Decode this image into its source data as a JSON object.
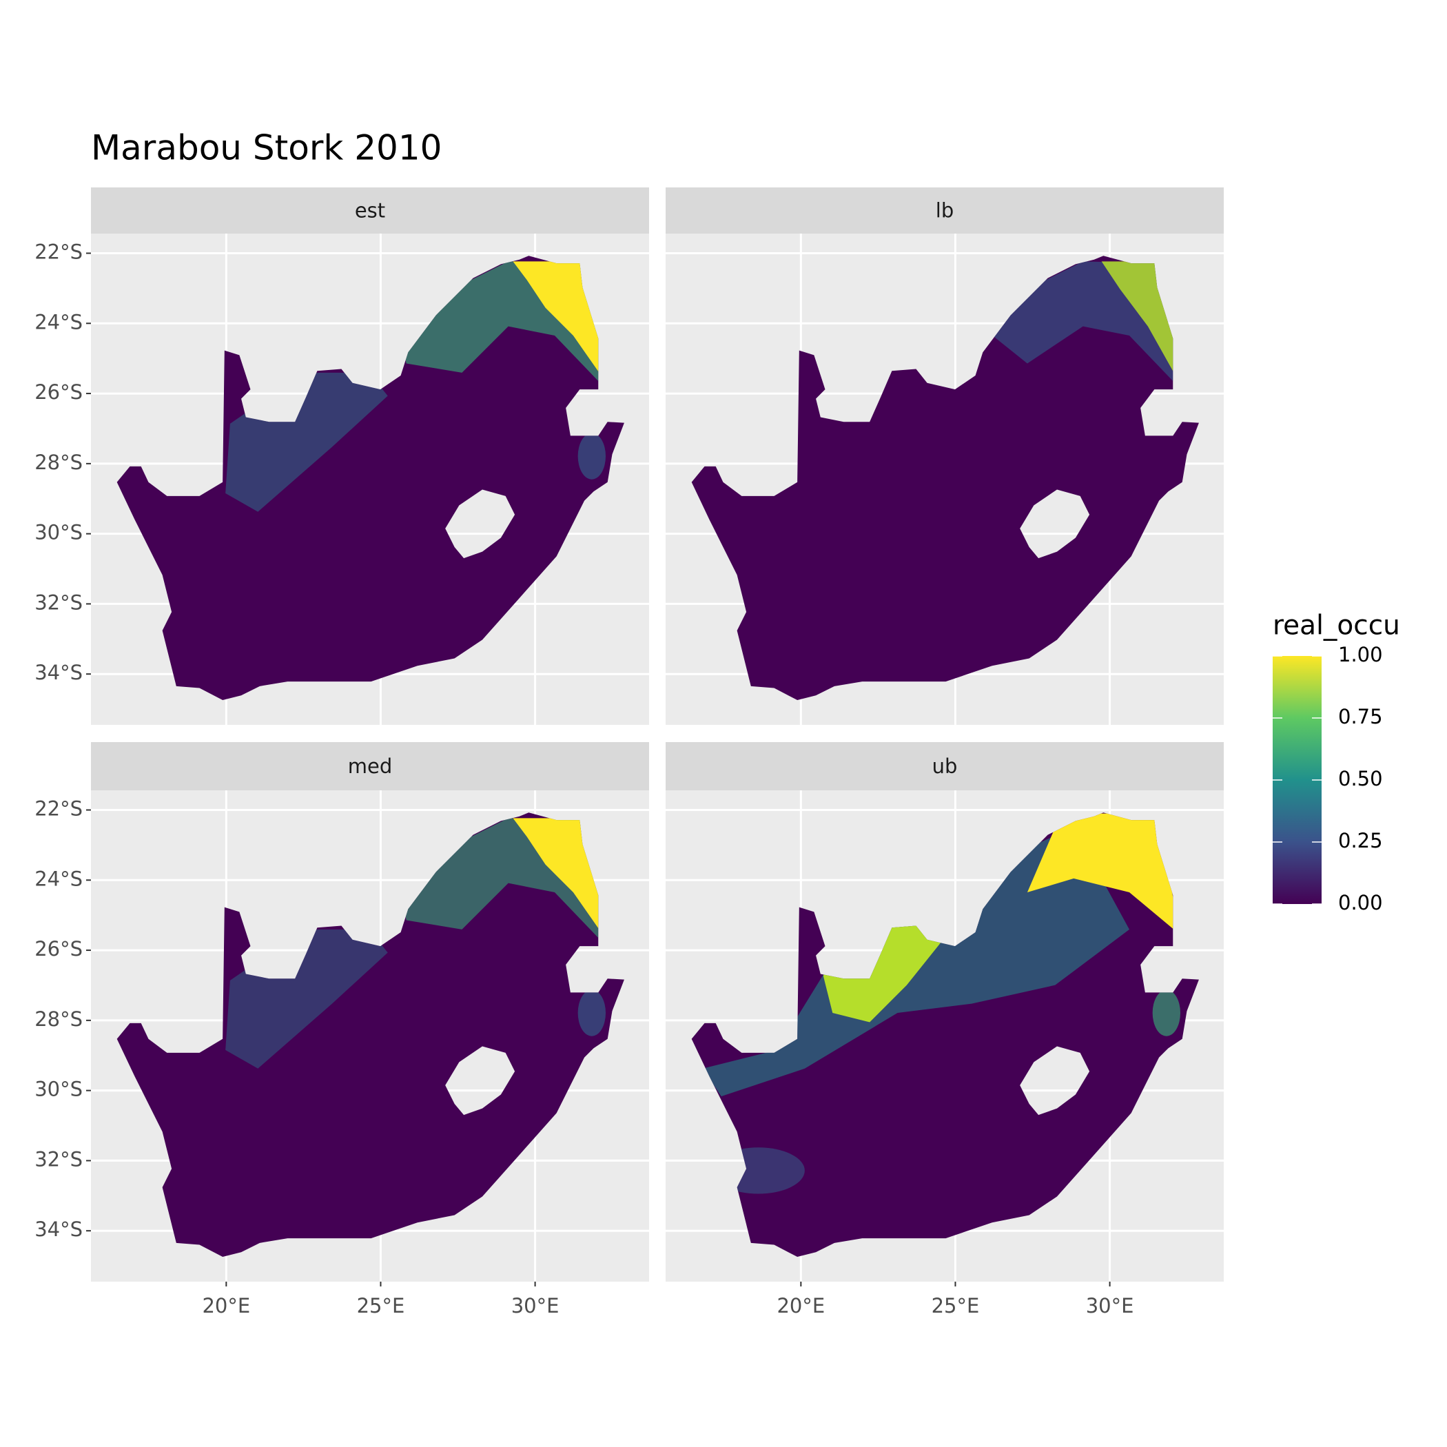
{
  "chart_data": {
    "type": "raster-map",
    "title": "Marabou Stork 2010",
    "facets": [
      "est",
      "lb",
      "med",
      "ub"
    ],
    "xlim": [
      15.62,
      33.69
    ],
    "ylim": [
      -35.45,
      -21.44
    ],
    "xticks": [
      {
        "value": 20,
        "label": "20°E"
      },
      {
        "value": 25,
        "label": "25°E"
      },
      {
        "value": 30,
        "label": "30°E"
      }
    ],
    "yticks": [
      {
        "value": -22,
        "label": "22°S"
      },
      {
        "value": -24,
        "label": "24°S"
      },
      {
        "value": -26,
        "label": "26°S"
      },
      {
        "value": -28,
        "label": "28°S"
      },
      {
        "value": -30,
        "label": "30°S"
      },
      {
        "value": -32,
        "label": "32°S"
      },
      {
        "value": -34,
        "label": "34°S"
      }
    ],
    "grid": true,
    "legend": {
      "title": "real_occu",
      "limits": [
        0,
        1
      ],
      "ticks": [
        {
          "value": 0,
          "label": "0.00"
        },
        {
          "value": 0.25,
          "label": "0.25"
        },
        {
          "value": 0.5,
          "label": "0.50"
        },
        {
          "value": 0.75,
          "label": "0.75"
        },
        {
          "value": 1,
          "label": "1.00"
        }
      ],
      "colors": [
        "#440154",
        "#3b528b",
        "#21918c",
        "#5ec962",
        "#fde725"
      ]
    }
  }
}
